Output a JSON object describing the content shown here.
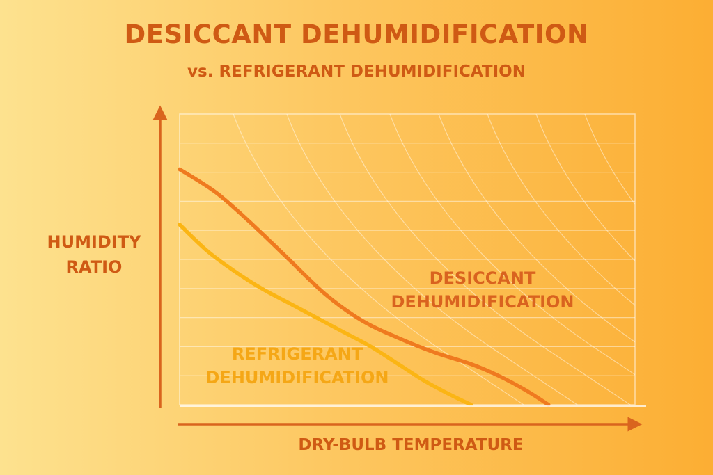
{
  "header": {
    "title": "DESICCANT DEHUMIDIFICATION",
    "subtitle": "vs. REFRIGERANT DEHUMIDIFICATION"
  },
  "colors": {
    "text": "#cf5a14",
    "desiccant": "#ef7a1f",
    "refrigerant": "#fbb514",
    "axis": "#d9641e",
    "grid": "#ffffff"
  },
  "chart_data": {
    "type": "line",
    "xlabel": "DRY-BULB TEMPERATURE",
    "ylabel": "HUMIDITY\nRATIO",
    "xlim": [
      0,
      1
    ],
    "ylim": [
      0,
      1
    ],
    "grid": true,
    "tick_labels": "none",
    "series": [
      {
        "name": "DESICCANT\nDEHUMIDIFICATION",
        "x": [
          0.0,
          0.08,
          0.16,
          0.24,
          0.32,
          0.4,
          0.48,
          0.56,
          0.64,
          0.7,
          0.76,
          0.81
        ],
        "y": [
          0.81,
          0.73,
          0.62,
          0.5,
          0.38,
          0.29,
          0.23,
          0.18,
          0.14,
          0.1,
          0.05,
          0.0
        ]
      },
      {
        "name": "REFRIGERANT\nDEHUMIDIFICATION",
        "x": [
          0.0,
          0.06,
          0.12,
          0.18,
          0.24,
          0.3,
          0.36,
          0.42,
          0.48,
          0.54,
          0.6,
          0.64
        ],
        "y": [
          0.62,
          0.53,
          0.46,
          0.4,
          0.35,
          0.3,
          0.25,
          0.2,
          0.14,
          0.08,
          0.03,
          0.0
        ]
      }
    ]
  }
}
